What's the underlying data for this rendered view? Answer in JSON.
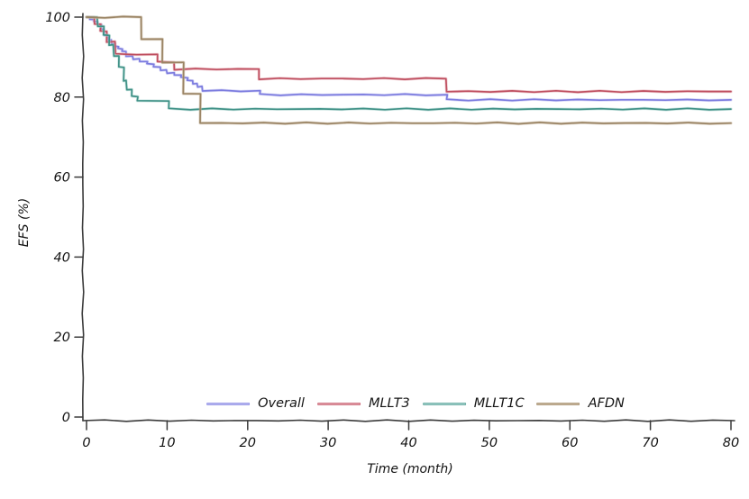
{
  "chart_data": {
    "type": "line",
    "step": true,
    "style": "hand-drawn-xkcd",
    "title": "",
    "xlabel": "Time (month)",
    "ylabel": "EFS (%)",
    "xlim": [
      0,
      80
    ],
    "ylim": [
      0,
      100
    ],
    "xticks": [
      0,
      10,
      20,
      30,
      40,
      50,
      60,
      70,
      80
    ],
    "yticks": [
      0,
      20,
      40,
      60,
      80,
      100
    ],
    "grid": false,
    "legend_position": "bottom-center",
    "axis_color": "#3b3b3b",
    "text_color": "#141414",
    "series": [
      {
        "name": "Overall",
        "color": "#7c7cdf",
        "halo": "#bcbcf1",
        "points": [
          [
            0,
            100
          ],
          [
            0.4,
            99.4
          ],
          [
            0.9,
            98.8
          ],
          [
            1.3,
            98.1
          ],
          [
            1.8,
            97.0
          ],
          [
            2.2,
            95.6
          ],
          [
            2.7,
            94.3
          ],
          [
            3.1,
            93.3
          ],
          [
            3.5,
            92.6
          ],
          [
            3.9,
            92.0
          ],
          [
            4.4,
            91.4
          ],
          [
            4.9,
            90.3
          ],
          [
            5.8,
            89.6
          ],
          [
            6.6,
            88.9
          ],
          [
            7.5,
            88.2
          ],
          [
            8.3,
            87.5
          ],
          [
            9.2,
            86.8
          ],
          [
            10.0,
            86.1
          ],
          [
            10.9,
            85.5
          ],
          [
            11.7,
            84.8
          ],
          [
            12.5,
            84.1
          ],
          [
            13.2,
            83.4
          ],
          [
            13.8,
            82.7
          ],
          [
            14.4,
            81.6
          ],
          [
            21.5,
            80.6
          ],
          [
            44.7,
            79.3
          ]
        ],
        "end_x": 80,
        "final_value": 79.3
      },
      {
        "name": "MLLT3",
        "color": "#bf4f60",
        "halo": "#e2a2ab",
        "points": [
          [
            0,
            100
          ],
          [
            1.0,
            98.2
          ],
          [
            1.7,
            96.4
          ],
          [
            2.5,
            93.9
          ],
          [
            3.6,
            90.7
          ],
          [
            8.8,
            88.7
          ],
          [
            10.9,
            87.0
          ],
          [
            21.4,
            84.6
          ],
          [
            44.7,
            81.4
          ]
        ],
        "end_x": 80,
        "final_value": 81.4
      },
      {
        "name": "MLLT1C",
        "color": "#3f9186",
        "halo": "#a6d2cc",
        "points": [
          [
            0,
            100
          ],
          [
            1.4,
            97.7
          ],
          [
            2.1,
            95.4
          ],
          [
            2.8,
            93.1
          ],
          [
            3.4,
            90.3
          ],
          [
            4.0,
            87.4
          ],
          [
            4.6,
            84.2
          ],
          [
            5.0,
            81.9
          ],
          [
            5.6,
            80.1
          ],
          [
            6.3,
            79.0
          ],
          [
            10.2,
            77.0
          ]
        ],
        "end_x": 80,
        "final_value": 77.0
      },
      {
        "name": "AFDN",
        "color": "#9a8464",
        "halo": "#c8b79e",
        "points": [
          [
            0,
            100
          ],
          [
            6.8,
            94.5
          ],
          [
            9.4,
            88.7
          ],
          [
            12.0,
            80.8
          ],
          [
            14.1,
            73.5
          ]
        ],
        "end_x": 80,
        "final_value": 73.5
      }
    ]
  }
}
